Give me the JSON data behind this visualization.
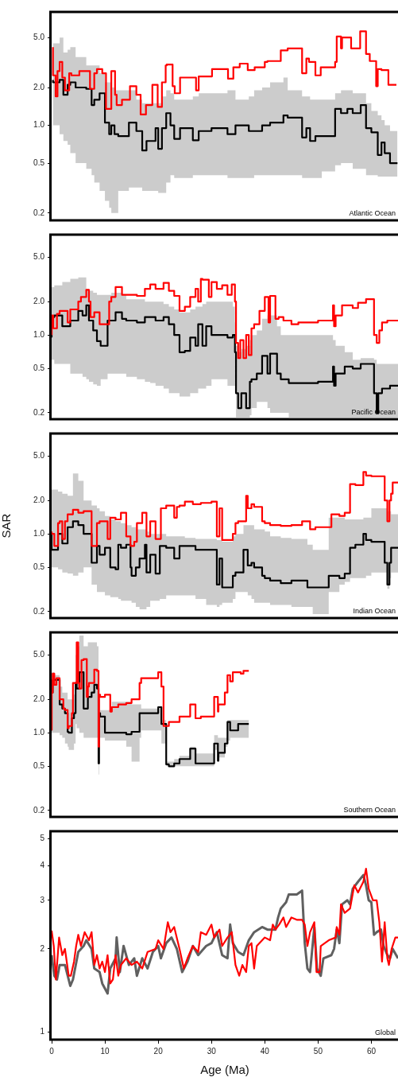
{
  "chart_data": [
    {
      "type": "step",
      "log": true,
      "xlim": [
        0,
        65
      ],
      "xticks": [
        0,
        10,
        20,
        30,
        40,
        50,
        60
      ],
      "ylim": [
        0.175,
        8
      ],
      "yticks": [
        {
          "value": 0.2,
          "label": "0.2"
        },
        {
          "value": 0.5,
          "label": "0.5"
        },
        {
          "value": 1,
          "label": "1.0"
        },
        {
          "value": 2,
          "label": "2.0"
        },
        {
          "value": 5,
          "label": "5.0"
        }
      ],
      "tick_labels": "y",
      "annotations": [
        "Atlantic Ocean"
      ],
      "series": [
        {
          "color": "#000000",
          "x": [
            0.25,
            1.5,
            2.2,
            3.0,
            3.5,
            4.5,
            6.5,
            7.5,
            8.0,
            9.0,
            10.0,
            10.8,
            11.2,
            11.8,
            12.5,
            14.5,
            15.9,
            17.0,
            17.8,
            19.5,
            20.0,
            20.7,
            21.5,
            22.3,
            23.0,
            24.1,
            26.5,
            27.6,
            30,
            33,
            34.5,
            37,
            38,
            39.5,
            41,
            43.5,
            44.3,
            47,
            47.8,
            48.5,
            49.5,
            50.7,
            53.2,
            54.3,
            55.5,
            56.5,
            58,
            59,
            60,
            61.2,
            61.9,
            62.5,
            63.5,
            64.9
          ],
          "values": [
            2.3,
            2.2,
            2.3,
            1.75,
            2.1,
            2.2,
            2.0,
            1.95,
            1.45,
            1.6,
            1.8,
            1.05,
            0.85,
            1.0,
            0.85,
            0.82,
            1.05,
            0.9,
            0.63,
            0.75,
            0.95,
            0.65,
            0.95,
            1.25,
            1.0,
            0.78,
            0.95,
            0.76,
            0.9,
            0.95,
            0.85,
            1.0,
            0.9,
            0.9,
            1.0,
            1.05,
            1.2,
            1.15,
            0.8,
            0.95,
            0.75,
            0.82,
            0.82,
            1.35,
            1.25,
            1.35,
            1.25,
            1.45,
            0.95,
            0.88,
            0.58,
            0.73,
            0.6,
            0.5
          ],
          "upper": [
            5.5,
            4.5,
            5.0,
            3.8,
            4.0,
            4.2,
            3.5,
            3.0,
            3.0,
            3.0,
            2.6,
            2.2,
            2.2,
            2.0,
            1.9,
            1.9,
            1.9,
            1.6,
            1.5,
            1.5,
            1.5,
            1.5,
            1.7,
            1.9,
            1.8,
            1.6,
            1.6,
            1.7,
            1.8,
            1.8,
            1.9,
            1.6,
            1.7,
            1.9,
            2.0,
            2.2,
            2.4,
            1.9,
            1.7,
            1.7,
            1.6,
            1.6,
            1.6,
            1.8,
            1.9,
            1.9,
            1.8,
            1.8,
            1.5,
            1.3,
            1.2,
            1.1,
            1.0,
            0.9
          ],
          "lower": [
            1.4,
            1.0,
            0.85,
            0.75,
            0.7,
            0.6,
            0.5,
            0.45,
            0.4,
            0.35,
            0.3,
            0.25,
            0.22,
            0.2,
            0.2,
            0.3,
            0.32,
            0.32,
            0.3,
            0.3,
            0.3,
            0.29,
            0.29,
            0.35,
            0.4,
            0.38,
            0.38,
            0.4,
            0.4,
            0.4,
            0.38,
            0.38,
            0.38,
            0.4,
            0.4,
            0.4,
            0.4,
            0.4,
            0.38,
            0.38,
            0.38,
            0.38,
            0.43,
            0.48,
            0.5,
            0.5,
            0.45,
            0.45,
            0.4,
            0.4,
            0.39,
            0.39,
            0.39,
            0.39
          ]
        },
        {
          "color": "#ff0000",
          "x": [
            0.25,
            0.75,
            1.1,
            1.5,
            2.0,
            2.5,
            3.3,
            3.7,
            5.2,
            7.2,
            8.0,
            8.5,
            9.5,
            10.2,
            11.2,
            11.9,
            12.2,
            13.2,
            14.7,
            15.9,
            16.7,
            17.7,
            18.9,
            19.9,
            20.7,
            21.4,
            21.6,
            22.7,
            23.1,
            24.1,
            25.1,
            27.1,
            27.6,
            30.1,
            33.1,
            34.1,
            35.3,
            36.8,
            38.1,
            40.0,
            40.5,
            43.0,
            44.3,
            47.0,
            47.8,
            48.3,
            49.5,
            50.5,
            50.7,
            53.2,
            53.5,
            54.3,
            54.5,
            56.2,
            57.9,
            59.0,
            59.7,
            60.9,
            61.2,
            61.9,
            63.2,
            63.4,
            64.7
          ],
          "values": [
            4.2,
            2.5,
            1.7,
            2.7,
            3.2,
            2.4,
            1.9,
            2.6,
            2.5,
            2.7,
            1.95,
            2.6,
            2.8,
            2.6,
            1.35,
            2.7,
            1.75,
            1.45,
            1.6,
            2.05,
            1.75,
            1.22,
            1.45,
            2.1,
            1.4,
            2.2,
            3.0,
            3.05,
            2.05,
            1.8,
            2.4,
            2.4,
            1.9,
            2.45,
            2.8,
            2.35,
            2.9,
            3.1,
            2.75,
            2.9,
            3.2,
            3.25,
            3.95,
            4.1,
            2.6,
            3.4,
            3.2,
            2.5,
            2.9,
            2.9,
            3.2,
            5.1,
            4.1,
            5.0,
            4.1,
            5.6,
            3.7,
            3.25,
            2.05,
            2.8,
            2.75,
            2.1,
            2.1
          ]
        }
      ]
    },
    {
      "type": "step",
      "log": true,
      "xlim": [
        0,
        65
      ],
      "xticks": [
        0,
        10,
        20,
        30,
        40,
        50,
        60
      ],
      "ylim": [
        0.175,
        8
      ],
      "yticks": [
        {
          "value": 0.2,
          "label": "0.2"
        },
        {
          "value": 0.5,
          "label": "0.5"
        },
        {
          "value": 1,
          "label": "1.0"
        },
        {
          "value": 2,
          "label": "2.0"
        },
        {
          "value": 5,
          "label": "5.0"
        }
      ],
      "tick_labels": "y",
      "annotations": [
        "Pacific Ocean"
      ],
      "series": [
        {
          "color": "#000000",
          "x": [
            0,
            0.5,
            2,
            3.5,
            5,
            5.8,
            6.5,
            7,
            7.8,
            8.5,
            9.2,
            10.5,
            11.2,
            12,
            13.2,
            14,
            16,
            17.5,
            18.5,
            19.5,
            21,
            22,
            23,
            24,
            25,
            26,
            27,
            27.5,
            28.3,
            29,
            30,
            31,
            33,
            34,
            34.4,
            34.6,
            35,
            35.6,
            36.5,
            37.2,
            37.5,
            38.5,
            39.5,
            40.5,
            41,
            42.3,
            43,
            44.5,
            46,
            50,
            52.8,
            53,
            53.3,
            55,
            56.5,
            58,
            60.5,
            61,
            61.3,
            62,
            63.5,
            65
          ],
          "values": [
            0.95,
            1.45,
            1.5,
            1.2,
            1.35,
            1.65,
            1.5,
            1.85,
            1.35,
            1.1,
            0.88,
            0.8,
            1.35,
            1.35,
            1.6,
            1.4,
            1.35,
            1.3,
            1.45,
            1.45,
            1.35,
            1.45,
            1.25,
            1.0,
            0.7,
            0.72,
            0.95,
            0.8,
            1.25,
            0.8,
            1.2,
            1.0,
            1.0,
            0.95,
            1.0,
            0.7,
            0.3,
            0.22,
            0.3,
            0.22,
            0.38,
            0.4,
            0.45,
            0.65,
            0.45,
            0.68,
            0.45,
            0.4,
            0.37,
            0.37,
            0.38,
            0.52,
            0.35,
            0.45,
            0.52,
            0.5,
            0.55,
            0.3,
            0.2,
            0.3,
            0.33,
            0.35
          ],
          "upper": [
            2.7,
            2.7,
            2.8,
            3.0,
            3.2,
            3.3,
            3.3,
            2.6,
            2.5,
            2.4,
            2.3,
            2.3,
            2.3,
            2.4,
            2.4,
            2.3,
            2.1,
            2.1,
            2.0,
            2.0,
            2.0,
            1.9,
            1.8,
            1.7,
            1.6,
            1.6,
            1.7,
            1.8,
            1.8,
            1.9,
            2.0,
            2.0,
            2.0,
            2.0,
            1.8,
            1.3,
            0.8,
            0.7,
            0.75,
            0.8,
            0.9,
            1.0,
            1.1,
            1.4,
            1.5,
            1.5,
            1.2,
            1.0,
            1.0,
            1.0,
            1.0,
            0.9,
            0.9,
            0.8,
            0.7,
            0.6,
            0.62,
            0.6,
            0.55,
            0.55,
            0.55,
            0.55
          ],
          "lower": [
            0.6,
            0.6,
            0.55,
            0.55,
            0.45,
            0.45,
            0.42,
            0.4,
            0.38,
            0.36,
            0.35,
            0.4,
            0.45,
            0.45,
            0.45,
            0.45,
            0.42,
            0.4,
            0.38,
            0.37,
            0.35,
            0.33,
            0.3,
            0.3,
            0.28,
            0.28,
            0.3,
            0.3,
            0.33,
            0.33,
            0.35,
            0.4,
            0.4,
            0.35,
            0.35,
            0.3,
            0.18,
            0.18,
            0.18,
            0.18,
            0.19,
            0.22,
            0.25,
            0.25,
            0.22,
            0.2,
            0.2,
            0.2,
            0.18,
            0.18,
            0.18,
            0.18,
            0.18,
            0.18,
            0.18,
            0.18,
            0.18,
            0.18,
            0.18,
            0.18,
            0.18,
            0.18
          ]
        },
        {
          "color": "#ff0000",
          "x": [
            0,
            0.3,
            1.0,
            1.5,
            3,
            3.5,
            5,
            5.5,
            6.5,
            7,
            7.3,
            8,
            9,
            9.5,
            10.8,
            11.2,
            12,
            13.2,
            14,
            16,
            17.5,
            18.5,
            19.5,
            21,
            22,
            23,
            24,
            25,
            26,
            27,
            27.5,
            28,
            28.3,
            29.5,
            30,
            31,
            32,
            33,
            33.8,
            34.4,
            34.6,
            35,
            35.4,
            36,
            36.5,
            37,
            37.5,
            38,
            39,
            40,
            40.7,
            41,
            42,
            42.6,
            43.5,
            45,
            46.3,
            50,
            52.8,
            53,
            53.3,
            54.5,
            56.5,
            57.5,
            59,
            60.5,
            61,
            61.5,
            62,
            63,
            64.5,
            65
          ],
          "values": [
            1.0,
            1.5,
            1.15,
            1.55,
            1.65,
            1.3,
            1.7,
            2.0,
            2.2,
            2.55,
            2.0,
            1.45,
            1.6,
            1.25,
            1.25,
            2.0,
            2.2,
            2.7,
            2.3,
            2.3,
            2.25,
            2.6,
            2.85,
            2.6,
            2.95,
            2.5,
            2.25,
            1.65,
            1.8,
            2.2,
            2.6,
            2.0,
            3.2,
            3.15,
            2.2,
            3.0,
            2.6,
            2.8,
            2.3,
            2.85,
            2.0,
            0.85,
            0.62,
            0.9,
            0.62,
            1.0,
            0.66,
            1.15,
            1.25,
            1.65,
            2.2,
            1.3,
            2.25,
            1.4,
            1.45,
            1.35,
            1.25,
            1.3,
            1.35,
            1.85,
            1.2,
            1.5,
            1.85,
            1.75,
            1.95,
            2.1,
            1.0,
            0.85,
            1.1,
            1.3,
            1.35,
            1.35
          ]
        }
      ]
    },
    {
      "type": "step",
      "log": true,
      "xlim": [
        0,
        65
      ],
      "xticks": [
        0,
        10,
        20,
        30,
        40,
        50,
        60
      ],
      "ylim": [
        0.175,
        8
      ],
      "yticks": [
        {
          "value": 0.2,
          "label": "0.2"
        },
        {
          "value": 0.5,
          "label": "0.5"
        },
        {
          "value": 1,
          "label": "1.0"
        },
        {
          "value": 2,
          "label": "2.0"
        },
        {
          "value": 5,
          "label": "5.0"
        }
      ],
      "tick_labels": "y",
      "ylabel": "SAR",
      "annotations": [
        "Indian Ocean"
      ],
      "series": [
        {
          "color": "#000000",
          "x": [
            0,
            1.2,
            2,
            3,
            4,
            5,
            6,
            7.5,
            8.5,
            9,
            10,
            11,
            12,
            12.5,
            13,
            14,
            14.8,
            15,
            15.8,
            16.5,
            17.5,
            17.8,
            18.5,
            19.5,
            20.3,
            21.5,
            23,
            24,
            25,
            27,
            29,
            31,
            31.5,
            32,
            32.5,
            34,
            34.5,
            36,
            36.8,
            37.5,
            38,
            39.5,
            40,
            41,
            43,
            45,
            48,
            49,
            52,
            54,
            55,
            56,
            57,
            58.5,
            59,
            60,
            62.5,
            63,
            63.4,
            63.7,
            64.5,
            65
          ],
          "values": [
            1.0,
            0.72,
            1.0,
            0.82,
            1.15,
            1.3,
            1.2,
            1.0,
            0.55,
            0.78,
            0.65,
            0.75,
            0.5,
            0.48,
            0.8,
            0.75,
            0.8,
            0.5,
            0.42,
            0.5,
            0.6,
            0.8,
            0.45,
            0.65,
            0.44,
            0.78,
            0.75,
            0.6,
            0.78,
            0.78,
            0.72,
            0.72,
            0.35,
            0.6,
            0.33,
            0.33,
            0.42,
            0.45,
            0.72,
            0.52,
            0.55,
            0.5,
            0.42,
            0.4,
            0.38,
            0.36,
            0.38,
            0.33,
            0.33,
            0.42,
            0.4,
            0.44,
            0.75,
            0.8,
            1.0,
            0.88,
            0.85,
            0.55,
            0.35,
            0.55,
            0.75,
            0.75
          ],
          "upper": [
            3.0,
            2.5,
            2.4,
            2.3,
            2.2,
            3.5,
            3.0,
            2.0,
            1.8,
            1.7,
            1.6,
            1.45,
            1.35,
            1.3,
            1.3,
            1.25,
            1.2,
            1.2,
            1.15,
            1.1,
            1.1,
            1.1,
            1.05,
            1.0,
            1.0,
            1.0,
            0.95,
            0.95,
            0.95,
            0.92,
            0.9,
            0.9,
            0.88,
            0.88,
            0.85,
            0.85,
            0.95,
            1.0,
            1.2,
            1.2,
            1.2,
            1.1,
            1.1,
            1.05,
            0.95,
            0.92,
            0.9,
            0.8,
            0.72,
            1.4,
            1.4,
            1.35,
            1.35,
            1.35,
            1.4,
            1.4,
            1.7,
            1.7,
            1.6,
            1.6,
            1.5,
            1.5
          ],
          "lower": [
            0.55,
            0.5,
            0.48,
            0.45,
            0.44,
            0.42,
            0.45,
            0.5,
            0.35,
            0.3,
            0.3,
            0.28,
            0.27,
            0.27,
            0.26,
            0.25,
            0.25,
            0.25,
            0.24,
            0.22,
            0.21,
            0.21,
            0.22,
            0.25,
            0.25,
            0.26,
            0.28,
            0.28,
            0.28,
            0.28,
            0.26,
            0.23,
            0.22,
            0.23,
            0.24,
            0.24,
            0.26,
            0.3,
            0.3,
            0.28,
            0.26,
            0.24,
            0.24,
            0.24,
            0.23,
            0.23,
            0.22,
            0.22,
            0.19,
            0.3,
            0.35,
            0.37,
            0.4,
            0.4,
            0.4,
            0.42,
            0.45,
            0.45,
            0.32,
            0.4,
            0.45,
            0.45
          ]
        },
        {
          "color": "#ff0000",
          "x": [
            0,
            0.5,
            1.2,
            1.5,
            2,
            2.5,
            3,
            4,
            5,
            6,
            7.5,
            8.5,
            9,
            10.5,
            11,
            12,
            13,
            14,
            14.8,
            15.5,
            16,
            17,
            17.8,
            18.5,
            19.5,
            20.5,
            21.5,
            23,
            23.5,
            24,
            25,
            26.5,
            28,
            30,
            31,
            31.5,
            32,
            32.5,
            34,
            34.5,
            35,
            36.5,
            36.8,
            37.5,
            38,
            39.5,
            40,
            41,
            43,
            45,
            47,
            48.5,
            49.5,
            52.5,
            54,
            55,
            56,
            57,
            58.5,
            59,
            60,
            62.5,
            63,
            63.4,
            63.7,
            64,
            64.5,
            65
          ],
          "values": [
            1.05,
            1.0,
            0.78,
            1.25,
            1.3,
            0.9,
            1.3,
            1.5,
            1.65,
            1.55,
            1.6,
            0.78,
            1.25,
            1.3,
            0.9,
            1.4,
            1.35,
            1.55,
            0.95,
            0.78,
            0.85,
            1.25,
            1.55,
            0.95,
            1.3,
            0.9,
            1.7,
            1.8,
            1.4,
            1.75,
            1.8,
            1.95,
            1.85,
            1.9,
            1.95,
            0.95,
            1.7,
            0.88,
            0.88,
            1.0,
            1.25,
            1.3,
            2.2,
            1.7,
            1.85,
            1.75,
            1.3,
            1.25,
            1.2,
            1.18,
            1.2,
            1.3,
            1.1,
            1.15,
            1.5,
            1.45,
            1.55,
            2.8,
            2.75,
            3.6,
            3.35,
            3.3,
            2.0,
            1.3,
            2.0,
            2.3,
            2.9,
            2.9
          ]
        }
      ]
    },
    {
      "type": "step",
      "log": true,
      "xlim": [
        0,
        65
      ],
      "xticks": [
        0,
        10,
        20,
        30,
        40,
        50,
        60
      ],
      "ylim": [
        0.175,
        8
      ],
      "yticks": [
        {
          "value": 0.2,
          "label": "0.2"
        },
        {
          "value": 0.5,
          "label": "0.5"
        },
        {
          "value": 1,
          "label": "1.0"
        },
        {
          "value": 2,
          "label": "2.0"
        },
        {
          "value": 5,
          "label": "5.0"
        }
      ],
      "tick_labels": "y",
      "annotations": [
        "Southern Ocean"
      ],
      "series": [
        {
          "color": "#000000",
          "x": [
            0,
            0.2,
            0.5,
            1.5,
            2,
            2.5,
            3,
            3.2,
            3.8,
            4.2,
            4.5,
            4.7,
            5.2,
            6,
            6.8,
            7.5,
            8,
            8.5,
            8.8,
            8.9,
            9.1,
            10,
            11.3,
            14,
            15,
            16.5,
            16.8,
            20,
            20.6,
            21,
            21.5,
            22,
            23,
            24,
            26,
            27,
            28,
            30.5,
            31.2,
            31.3,
            32.5,
            33,
            33.5,
            34,
            35,
            35.5,
            37
          ],
          "values": [
            1.05,
            2.3,
            3.0,
            3.0,
            1.8,
            1.65,
            1.5,
            1.02,
            1.0,
            1.35,
            1.5,
            2.8,
            2.5,
            3.5,
            1.65,
            2.1,
            2.3,
            2.7,
            2.5,
            0.53,
            1.5,
            1.4,
            1.0,
            1.0,
            0.97,
            1.02,
            1.5,
            1.5,
            1.7,
            1.2,
            1.2,
            0.52,
            0.5,
            0.53,
            0.58,
            0.72,
            0.53,
            0.53,
            0.8,
            0.56,
            0.66,
            0.8,
            1.25,
            1.05,
            1.05,
            1.2,
            1.2
          ],
          "upper": [
            3.5,
            3.5,
            3.5,
            3.3,
            2.6,
            2.3,
            2.3,
            2.0,
            2.0,
            2.0,
            2.2,
            5.0,
            6.0,
            7.5,
            6.0,
            6.5,
            6.5,
            6.5,
            6.0,
            2.0,
            2.0,
            1.6,
            1.6,
            1.9,
            1.9,
            1.8,
            1.8,
            1.65,
            1.7,
            1.3,
            1.3,
            0.55,
            0.55,
            0.58,
            0.62,
            0.75,
            0.65,
            0.65,
            0.95,
            0.9,
            0.9,
            0.9,
            1.3,
            1.3,
            1.3,
            1.3,
            1.3
          ],
          "lower": [
            1.0,
            1.0,
            1.0,
            1.0,
            0.95,
            0.9,
            0.8,
            0.75,
            0.7,
            0.7,
            0.8,
            1.2,
            1.1,
            1.0,
            0.9,
            0.9,
            0.9,
            0.9,
            0.9,
            0.42,
            0.9,
            0.9,
            0.85,
            0.85,
            0.75,
            0.55,
            0.9,
            1.05,
            1.05,
            0.8,
            0.8,
            0.5,
            0.5,
            0.5,
            0.5,
            0.5,
            0.5,
            0.5,
            0.7,
            0.55,
            0.6,
            0.75,
            0.85,
            0.9,
            0.9,
            0.9,
            0.9
          ]
        },
        {
          "color": "#ff0000",
          "x": [
            0,
            0.2,
            0.5,
            0.9,
            1.5,
            2.2,
            2.5,
            3,
            3.2,
            3.8,
            4,
            4.7,
            5,
            5.2,
            5.6,
            6,
            6.6,
            6.8,
            7,
            8,
            8.5,
            8.8,
            8.9,
            9.1,
            10,
            11,
            11.3,
            12.5,
            14,
            15,
            16.5,
            16.8,
            20,
            20.6,
            21,
            22,
            24,
            26,
            27,
            28,
            30.5,
            31.2,
            31.3,
            32.5,
            33,
            33.5,
            34,
            35.5,
            36,
            37
          ],
          "values": [
            1.05,
            2.3,
            3.4,
            2.7,
            3.1,
            2.0,
            1.65,
            1.6,
            1.1,
            1.15,
            1.5,
            2.8,
            6.5,
            2.8,
            2.5,
            4.5,
            4.6,
            2.1,
            2.6,
            2.8,
            3.7,
            3.6,
            0.75,
            2.2,
            2.1,
            2.2,
            1.55,
            1.7,
            1.8,
            1.85,
            2.0,
            2.8,
            3.1,
            3.5,
            2.6,
            1.15,
            1.25,
            1.4,
            1.8,
            1.35,
            1.4,
            2.1,
            1.55,
            1.8,
            2.3,
            3.3,
            2.9,
            3.5,
            3.4,
            3.6
          ]
        }
      ]
    },
    {
      "type": "line",
      "log": true,
      "xlim": [
        0,
        65
      ],
      "xticks": [
        0,
        10,
        20,
        30,
        40,
        50,
        60
      ],
      "ylim": [
        0.94,
        5.33
      ],
      "yticks": [
        1,
        2,
        3,
        4,
        5
      ],
      "xlabel": "Age (Ma)",
      "annotations": [
        "Global"
      ],
      "series": [
        {
          "color": "#606060",
          "x": [
            0,
            0.5,
            1,
            1.5,
            2.5,
            3.5,
            4,
            5,
            6,
            6.5,
            7.5,
            8,
            9,
            9.5,
            10.5,
            11,
            12,
            12.2,
            12.8,
            13.5,
            14.5,
            15.5,
            16,
            17,
            18,
            19,
            20,
            20.5,
            21.5,
            22.5,
            23.5,
            24.5,
            25.5,
            26.5,
            27.5,
            29,
            30,
            31,
            32,
            33,
            33.5,
            34,
            35,
            36,
            37,
            38,
            39.5,
            40.5,
            42,
            42.5,
            43,
            44,
            44.5,
            46,
            47,
            47.5,
            48,
            48.5,
            49.3,
            49.8,
            50.5,
            51,
            52.5,
            53,
            53.5,
            54,
            54.5,
            55.5,
            56,
            56.5,
            57.5,
            58.5,
            59,
            59.5,
            60,
            60.5,
            61,
            61.8,
            62.3,
            63,
            63.5,
            64,
            65
          ],
          "values": [
            1.9,
            1.6,
            1.55,
            1.75,
            1.75,
            1.47,
            1.55,
            1.95,
            2.05,
            2.15,
            2.0,
            1.7,
            1.65,
            1.5,
            1.38,
            1.7,
            1.85,
            2.2,
            1.65,
            2.05,
            1.75,
            1.85,
            1.6,
            1.85,
            1.7,
            1.95,
            2.05,
            1.85,
            2.1,
            2.2,
            2.0,
            1.65,
            1.8,
            2.05,
            1.9,
            2.05,
            2.1,
            2.3,
            1.9,
            1.85,
            2.45,
            2.1,
            1.95,
            1.9,
            2.15,
            2.3,
            2.4,
            2.35,
            2.35,
            2.6,
            2.8,
            2.95,
            3.15,
            3.15,
            3.25,
            2.1,
            1.7,
            1.65,
            2.4,
            1.7,
            1.6,
            1.85,
            1.9,
            2.0,
            2.35,
            2.1,
            2.9,
            3.0,
            2.9,
            3.3,
            3.5,
            3.7,
            3.4,
            3.0,
            2.95,
            2.25,
            2.3,
            2.35,
            2.05,
            1.9,
            1.85,
            2.0,
            1.85
          ]
        },
        {
          "color": "#ff0000",
          "x": [
            0,
            0.4,
            0.8,
            1.4,
            2,
            2.5,
            3.2,
            3.6,
            4.2,
            4.6,
            5,
            5.5,
            6.2,
            7,
            7.5,
            8,
            8.5,
            9,
            9.5,
            10,
            10.5,
            11,
            11.5,
            12,
            12.5,
            13,
            14,
            15,
            16,
            17,
            18,
            19.5,
            20,
            21,
            21.8,
            22.3,
            23,
            24,
            24.8,
            25.5,
            26.5,
            27.5,
            28,
            29,
            30,
            30.5,
            31.5,
            32,
            33,
            33.8,
            34.5,
            35.2,
            35.8,
            36.5,
            37,
            37.5,
            38,
            38.5,
            40,
            41,
            41.5,
            42,
            42.7,
            43.5,
            44,
            45,
            46,
            47,
            47.5,
            48,
            48.5,
            49.3,
            49.7,
            50.3,
            50.5,
            52,
            53.3,
            53.5,
            54,
            54.3,
            55,
            56,
            56.8,
            57.5,
            58.5,
            59,
            59.5,
            60.3,
            61,
            61.5,
            62,
            62.5,
            63,
            63.3,
            63.8,
            64.5,
            65
          ],
          "values": [
            2.33,
            2.05,
            1.55,
            2.2,
            1.9,
            2.0,
            1.6,
            1.6,
            1.8,
            2.05,
            2.25,
            2.05,
            2.3,
            2.15,
            2.3,
            1.75,
            1.9,
            1.7,
            1.8,
            1.65,
            1.9,
            1.5,
            1.55,
            1.9,
            1.6,
            1.75,
            1.85,
            1.75,
            1.8,
            1.7,
            1.95,
            2.0,
            2.15,
            2.0,
            2.5,
            2.3,
            2.4,
            2.0,
            1.7,
            1.85,
            2.05,
            1.95,
            2.3,
            2.25,
            2.45,
            2.2,
            2.35,
            2.05,
            2.2,
            2.3,
            1.75,
            1.6,
            1.75,
            1.65,
            2.05,
            2.1,
            1.7,
            2.05,
            2.2,
            2.15,
            2.45,
            2.35,
            2.45,
            2.6,
            2.4,
            2.6,
            2.55,
            2.55,
            2.45,
            2.05,
            2.3,
            2.5,
            1.65,
            1.65,
            2.05,
            2.15,
            2.2,
            2.4,
            2.25,
            2.9,
            2.7,
            2.8,
            3.4,
            3.2,
            3.5,
            3.9,
            3.3,
            3.0,
            3.0,
            2.5,
            1.8,
            2.5,
            1.85,
            1.75,
            2.0,
            2.2,
            2.2
          ]
        }
      ]
    }
  ]
}
